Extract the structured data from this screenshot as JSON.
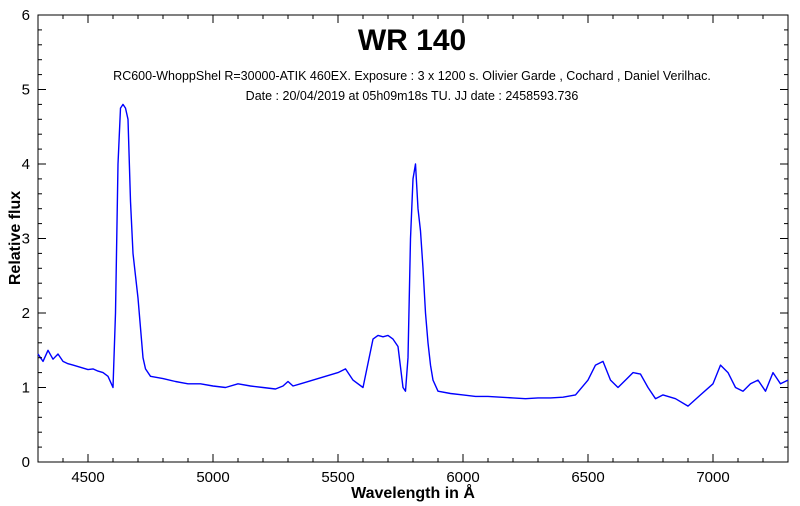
{
  "chart_data": {
    "type": "line",
    "title": "WR 140",
    "subtitle_line1": "RC600-WhoppShel R=30000-ATIK 460EX. Exposure : 3 x 1200 s. Olivier Garde , Cochard , Daniel Verilhac.",
    "subtitle_line2": "Date : 20/04/2019 at 05h09m18s TU. JJ date : 2458593.736",
    "xlabel": "Wavelength in Å",
    "ylabel": "Relative flux",
    "xlim": [
      4300,
      7300
    ],
    "ylim": [
      0,
      6
    ],
    "x_ticks": [
      4500,
      5000,
      5500,
      6000,
      6500,
      7000
    ],
    "y_ticks": [
      0,
      1,
      2,
      3,
      4,
      5,
      6
    ],
    "grid": false,
    "line_color": "#0000ff",
    "series": [
      {
        "x": [
          4300,
          4320,
          4340,
          4360,
          4380,
          4400,
          4420,
          4440,
          4460,
          4480,
          4500,
          4520,
          4540,
          4560,
          4580,
          4600,
          4610,
          4620,
          4630,
          4640,
          4650,
          4660,
          4670,
          4680,
          4690,
          4700,
          4710,
          4720,
          4730,
          4750,
          4800,
          4850,
          4900,
          4950,
          5000,
          5050,
          5100,
          5150,
          5200,
          5250,
          5280,
          5300,
          5320,
          5350,
          5400,
          5450,
          5500,
          5530,
          5560,
          5600,
          5640,
          5660,
          5680,
          5700,
          5720,
          5740,
          5760,
          5770,
          5780,
          5790,
          5800,
          5810,
          5820,
          5830,
          5840,
          5850,
          5860,
          5870,
          5880,
          5900,
          5950,
          6000,
          6050,
          6100,
          6150,
          6200,
          6250,
          6300,
          6350,
          6400,
          6450,
          6500,
          6530,
          6560,
          6590,
          6620,
          6650,
          6680,
          6710,
          6740,
          6770,
          6800,
          6850,
          6900,
          6950,
          7000,
          7030,
          7060,
          7090,
          7120,
          7150,
          7180,
          7210,
          7240,
          7270,
          7300
        ],
        "y": [
          1.45,
          1.35,
          1.5,
          1.38,
          1.45,
          1.35,
          1.32,
          1.3,
          1.28,
          1.26,
          1.24,
          1.25,
          1.22,
          1.2,
          1.15,
          1.0,
          2.0,
          4.0,
          4.75,
          4.8,
          4.75,
          4.6,
          3.5,
          2.8,
          2.5,
          2.2,
          1.8,
          1.4,
          1.25,
          1.15,
          1.12,
          1.08,
          1.05,
          1.05,
          1.02,
          1.0,
          1.05,
          1.02,
          1.0,
          0.98,
          1.02,
          1.08,
          1.02,
          1.05,
          1.1,
          1.15,
          1.2,
          1.25,
          1.1,
          1.0,
          1.65,
          1.7,
          1.68,
          1.7,
          1.65,
          1.55,
          1.0,
          0.95,
          1.4,
          3.0,
          3.8,
          4.0,
          3.4,
          3.1,
          2.6,
          2.0,
          1.6,
          1.3,
          1.1,
          0.95,
          0.92,
          0.9,
          0.88,
          0.88,
          0.87,
          0.86,
          0.85,
          0.86,
          0.86,
          0.87,
          0.9,
          1.1,
          1.3,
          1.35,
          1.1,
          1.0,
          1.1,
          1.2,
          1.18,
          1.0,
          0.85,
          0.9,
          0.85,
          0.75,
          0.9,
          1.05,
          1.3,
          1.2,
          1.0,
          0.95,
          1.05,
          1.1,
          0.95,
          1.2,
          1.05,
          1.1
        ]
      }
    ]
  }
}
